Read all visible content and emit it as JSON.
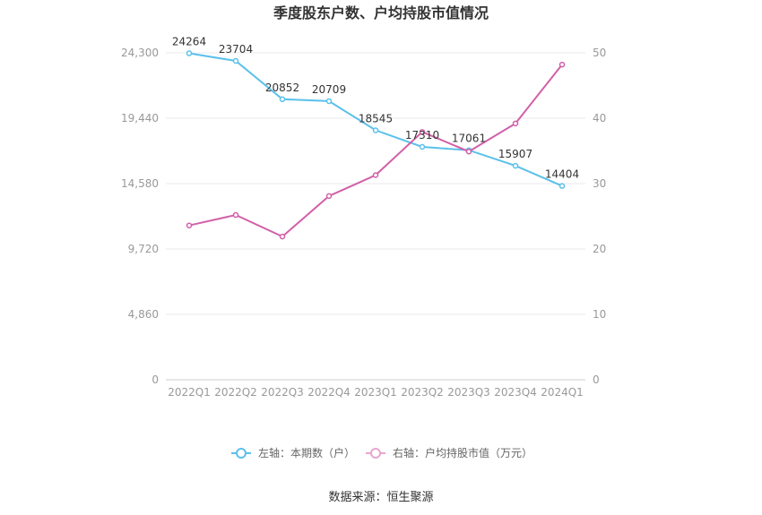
{
  "chart_data": {
    "type": "line",
    "title": "季度股东户数、户均持股市值情况",
    "categories": [
      "2022Q1",
      "2022Q2",
      "2022Q3",
      "2022Q4",
      "2023Q1",
      "2023Q2",
      "2023Q3",
      "2023Q4",
      "2024Q1"
    ],
    "series": [
      {
        "name": "左轴：本期数（户）",
        "axis": "left",
        "color": "#5BC0EB",
        "values": [
          24264,
          23704,
          20852,
          20709,
          18545,
          17310,
          17061,
          15907,
          14404
        ],
        "labels": [
          "24264",
          "23704",
          "20852",
          "20709",
          "18545",
          "17310",
          "17061",
          "15907",
          "14404"
        ]
      },
      {
        "name": "右轴：户均持股市值（万元）",
        "axis": "right",
        "color": "#D160A8",
        "values": [
          23.6,
          25.2,
          21.9,
          28.1,
          31.3,
          37.9,
          34.9,
          39.2,
          48.2
        ]
      }
    ],
    "left_axis": {
      "min": 0,
      "max": 24300,
      "ticks": [
        "0",
        "4,860",
        "9,720",
        "14,580",
        "19,440",
        "24,300"
      ]
    },
    "right_axis": {
      "min": 0,
      "max": 50,
      "ticks": [
        "0",
        "10",
        "20",
        "30",
        "40",
        "50"
      ]
    },
    "grid": true,
    "legend_position": "bottom"
  },
  "source": "数据来源：恒生聚源"
}
